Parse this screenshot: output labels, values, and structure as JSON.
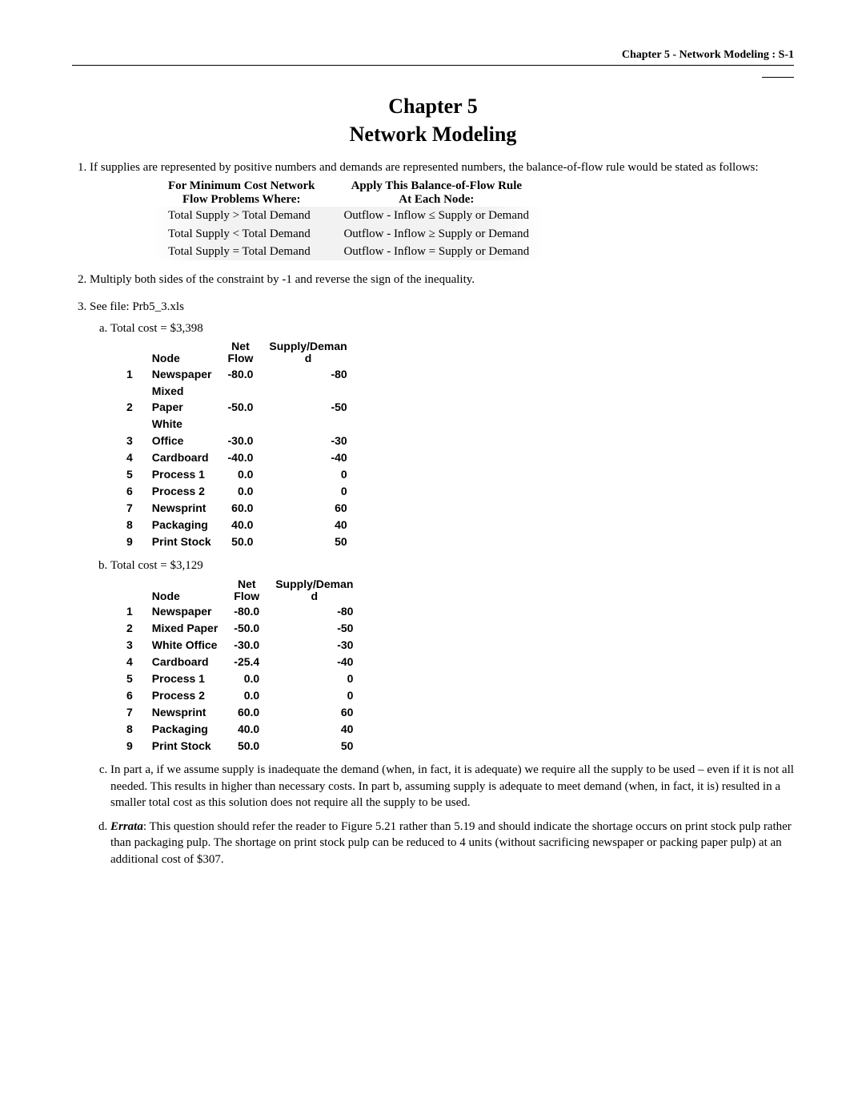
{
  "header": {
    "right": "Chapter 5 - Network Modeling : S-1"
  },
  "title": {
    "line1": "Chapter 5",
    "line2": "Network Modeling"
  },
  "q1": {
    "text": "If supplies are represented by positive numbers and demands are represented numbers, the balance-of-flow rule would be stated as follows:",
    "tbl": {
      "h1a": "For Minimum Cost Network",
      "h1b": "Flow Problems Where:",
      "h2a": "Apply This Balance-of-Flow Rule",
      "h2b": "At Each Node:",
      "r1a": "Total Supply > Total Demand",
      "r1b": "Outflow - Inflow ≤ Supply or Demand",
      "r2a": "Total Supply < Total Demand",
      "r2b": "Outflow - Inflow ≥ Supply or Demand",
      "r3a": "Total Supply = Total Demand",
      "r3b": "Outflow - Inflow = Supply or Demand"
    }
  },
  "q2": "Multiply both sides of the constraint by -1 and reverse the sign of the inequality.",
  "q3": {
    "text": "See file: Prb5_3.xls",
    "a": {
      "label": "Total cost = $3,398",
      "head_node": "Node",
      "head_net1": "Net",
      "head_net2": "Flow",
      "head_sd1": "Supply/Deman",
      "head_sd2": "d",
      "rows": [
        {
          "i": "1",
          "node": "Newspaper",
          "net": "-80.0",
          "sd": "-80"
        },
        {
          "i": "",
          "node": "Mixed",
          "net": "",
          "sd": ""
        },
        {
          "i": "2",
          "node": "Paper",
          "net": "-50.0",
          "sd": "-50"
        },
        {
          "i": "",
          "node": "White",
          "net": "",
          "sd": ""
        },
        {
          "i": "3",
          "node": "Office",
          "net": "-30.0",
          "sd": "-30"
        },
        {
          "i": "4",
          "node": "Cardboard",
          "net": "-40.0",
          "sd": "-40"
        },
        {
          "i": "5",
          "node": "Process 1",
          "net": "0.0",
          "sd": "0"
        },
        {
          "i": "6",
          "node": "Process 2",
          "net": "0.0",
          "sd": "0"
        },
        {
          "i": "7",
          "node": "Newsprint",
          "net": "60.0",
          "sd": "60"
        },
        {
          "i": "8",
          "node": "Packaging",
          "net": "40.0",
          "sd": "40"
        },
        {
          "i": "9",
          "node": "Print Stock",
          "net": "50.0",
          "sd": "50"
        }
      ]
    },
    "b": {
      "label": "Total cost = $3,129",
      "head_node": "Node",
      "head_net1": "Net",
      "head_net2": "Flow",
      "head_sd1": "Supply/Deman",
      "head_sd2": "d",
      "rows": [
        {
          "i": "1",
          "node": "Newspaper",
          "net": "-80.0",
          "sd": "-80"
        },
        {
          "i": "2",
          "node": "Mixed Paper",
          "net": "-50.0",
          "sd": "-50"
        },
        {
          "i": "3",
          "node": "White Office",
          "net": "-30.0",
          "sd": "-30"
        },
        {
          "i": "4",
          "node": "Cardboard",
          "net": "-25.4",
          "sd": "-40"
        },
        {
          "i": "5",
          "node": "Process 1",
          "net": "0.0",
          "sd": "0"
        },
        {
          "i": "6",
          "node": "Process 2",
          "net": "0.0",
          "sd": "0"
        },
        {
          "i": "7",
          "node": "Newsprint",
          "net": "60.0",
          "sd": "60"
        },
        {
          "i": "8",
          "node": "Packaging",
          "net": "40.0",
          "sd": "40"
        },
        {
          "i": "9",
          "node": "Print Stock",
          "net": "50.0",
          "sd": "50"
        }
      ]
    },
    "c": "In part a, if we assume supply is inadequate the demand (when, in fact, it is adequate) we require all the supply to be used – even if it is not all needed.  This results in higher than necessary costs.  In part b, assuming supply is adequate to meet demand (when, in fact, it is)  resulted in a smaller total cost as this solution does not require all the supply to be used.",
    "d_label": "Errata",
    "d": ":  This question should refer the reader to Figure 5.21 rather than 5.19 and should indicate the shortage occurs on print stock pulp rather than packaging pulp.  The shortage on print stock pulp can be reduced to 4 units (without sacrificing newspaper or packing paper pulp) at an additional cost of $307."
  }
}
